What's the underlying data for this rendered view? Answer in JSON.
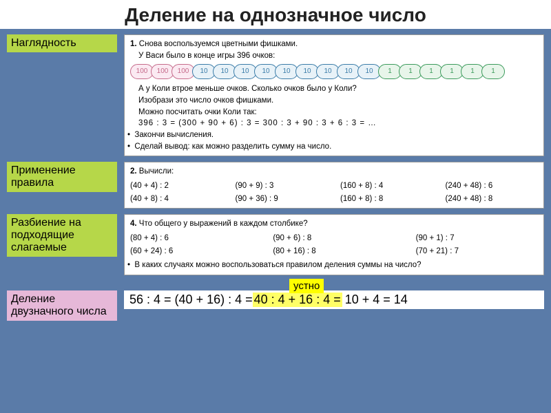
{
  "title": "Деление на однозначное число",
  "labels": {
    "visual": "Наглядность",
    "rule": "Применение правила",
    "split": "Разбиение на подходящие слагаемые",
    "two_digit": "Деление двузначного числа",
    "oral": "устно"
  },
  "colors": {
    "page_bg": "#5a7ba8",
    "label_green": "#b6d749",
    "label_pink": "#e6b8d8",
    "yellow": "#ffff00",
    "chip100_border": "#c56a8a",
    "chip10_border": "#3a7ca8",
    "chip1_border": "#3a9a5a"
  },
  "panel1": {
    "num": "1.",
    "line1": "Снова воспользуемся цветными фишками.",
    "line2": "У Васи было в конце игры 396 очков:",
    "chips": [
      {
        "v": "100",
        "c": "chip-100"
      },
      {
        "v": "100",
        "c": "chip-100"
      },
      {
        "v": "100",
        "c": "chip-100"
      },
      {
        "v": "10",
        "c": "chip-10"
      },
      {
        "v": "10",
        "c": "chip-10"
      },
      {
        "v": "10",
        "c": "chip-10"
      },
      {
        "v": "10",
        "c": "chip-10"
      },
      {
        "v": "10",
        "c": "chip-10"
      },
      {
        "v": "10",
        "c": "chip-10"
      },
      {
        "v": "10",
        "c": "chip-10"
      },
      {
        "v": "10",
        "c": "chip-10"
      },
      {
        "v": "10",
        "c": "chip-10"
      },
      {
        "v": "1",
        "c": "chip-1"
      },
      {
        "v": "1",
        "c": "chip-1"
      },
      {
        "v": "1",
        "c": "chip-1"
      },
      {
        "v": "1",
        "c": "chip-1"
      },
      {
        "v": "1",
        "c": "chip-1"
      },
      {
        "v": "1",
        "c": "chip-1"
      }
    ],
    "line3": "А у Коли втрое меньше очков. Сколько очков было у Коли?",
    "line4": "Изобрази это число очков фишками.",
    "line5": "Можно посчитать очки Коли так:",
    "expr": "396 : 3 = (300 + 90 + 6) : 3 = 300 : 3 + 90 : 3 + 6 : 3 = …",
    "b1": "Закончи вычисления.",
    "b2": "Сделай вывод: как можно разделить сумму на число."
  },
  "panel2": {
    "num": "2.",
    "head": "Вычисли:",
    "cells": [
      "(40 + 4) : 2",
      "(90 + 9) : 3",
      "(160 + 8) : 4",
      "(240 + 48) : 6",
      "(40 + 8) : 4",
      "(90 + 36) : 9",
      "(160 + 8) : 8",
      "(240 + 48) : 8"
    ]
  },
  "panel4": {
    "num": "4.",
    "head": "Что общего у выражений в каждом столбике?",
    "cells": [
      "(80 + 4) : 6",
      "(90 + 6) : 8",
      "(90 + 1) : 7",
      "(60 + 24) : 6",
      "(80 + 16) : 8",
      "(70 + 21) : 7"
    ],
    "q": "В каких случаях можно воспользоваться правилом деления суммы на число?"
  },
  "final": {
    "lhs": "56 : 4 = (40 + 16) : 4 = ",
    "mid": "40 : 4 + 16 : 4 = ",
    "rhs": "10 + 4 = 14"
  }
}
